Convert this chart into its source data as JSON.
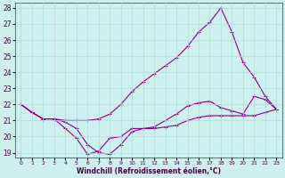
{
  "xlabel": "Windchill (Refroidissement éolien,°C)",
  "hours": [
    0,
    1,
    2,
    3,
    4,
    5,
    6,
    7,
    8,
    9,
    10,
    11,
    12,
    13,
    14,
    15,
    16,
    17,
    18,
    19,
    20,
    21,
    22,
    23
  ],
  "line1": [
    22.0,
    21.5,
    21.1,
    21.1,
    20.9,
    20.5,
    19.5,
    19.0,
    18.9,
    19.5,
    20.3,
    20.5,
    20.5,
    20.6,
    20.7,
    21.0,
    21.2,
    21.3,
    21.3,
    21.3,
    21.3,
    21.3,
    21.5,
    21.7
  ],
  "line2": [
    22.0,
    21.5,
    21.1,
    21.1,
    20.5,
    19.9,
    18.9,
    19.1,
    19.9,
    20.0,
    20.5,
    20.5,
    20.6,
    21.0,
    21.4,
    21.9,
    22.1,
    22.2,
    21.8,
    21.6,
    21.4,
    22.5,
    22.3,
    21.7
  ],
  "line3": [
    22.0,
    21.5,
    21.1,
    21.1,
    21.0,
    21.0,
    21.0,
    21.1,
    21.4,
    22.0,
    22.8,
    23.4,
    23.9,
    24.4,
    24.9,
    25.6,
    26.5,
    27.1,
    28.0,
    26.5,
    24.6,
    23.7,
    22.5,
    21.7
  ],
  "line_color": "#880088",
  "bg_color": "#cdf0ef",
  "grid_color": "#aadede",
  "ylim_min": 19,
  "ylim_max": 28,
  "xlim_min": 0,
  "xlim_max": 23,
  "yticks": [
    19,
    20,
    21,
    22,
    23,
    24,
    25,
    26,
    27,
    28
  ],
  "xticks": [
    0,
    1,
    2,
    3,
    4,
    5,
    6,
    7,
    8,
    9,
    10,
    11,
    12,
    13,
    14,
    15,
    16,
    17,
    18,
    19,
    20,
    21,
    22,
    23
  ]
}
